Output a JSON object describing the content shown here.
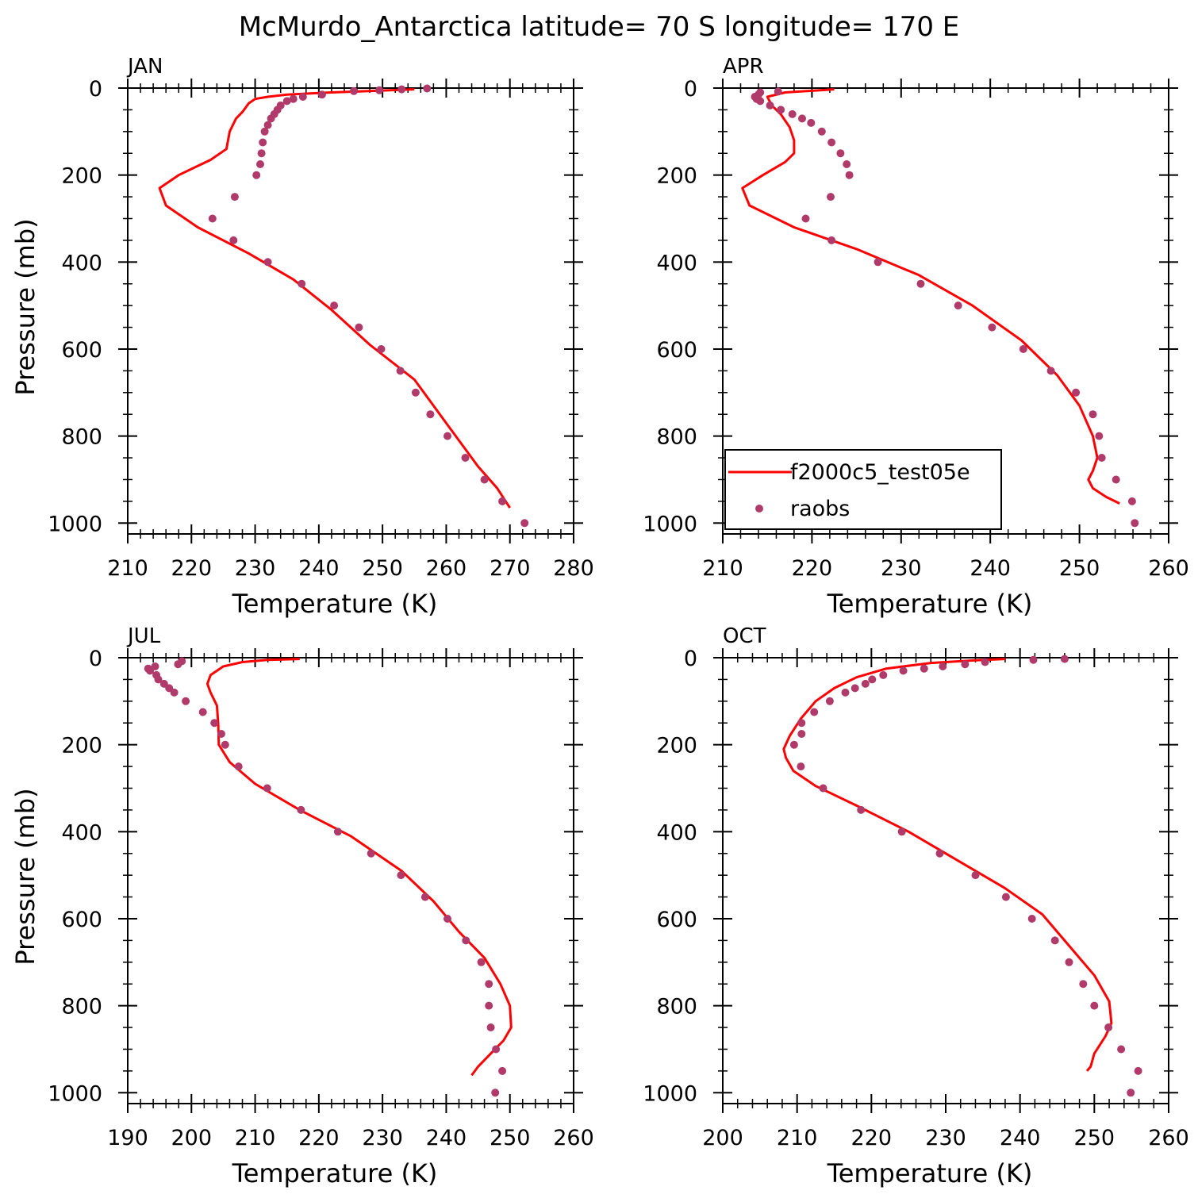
{
  "title": "McMurdo_Antarctica  latitude= 70 S longitude= 170 E",
  "colors": {
    "model_line": "#ff0000",
    "obs_marker": "#b03a6a",
    "axes": "#000000"
  },
  "legend": {
    "items": [
      {
        "label": "f2000c5_test05e",
        "kind": "line"
      },
      {
        "label": "raobs",
        "kind": "marker"
      }
    ]
  },
  "chart_data": [
    {
      "type": "line",
      "panel": "JAN",
      "xlabel": "Temperature (K)",
      "ylabel": "Pressure (mb)",
      "xlim": [
        210,
        280
      ],
      "ylim": [
        0,
        1025
      ],
      "y_inverted": true,
      "xticks": [
        "210",
        "220",
        "230",
        "240",
        "250",
        "260",
        "270",
        "280"
      ],
      "yticks": [
        "0",
        "200",
        "400",
        "600",
        "800",
        "1000"
      ],
      "series": [
        {
          "name": "f2000c5_test05e",
          "kind": "line",
          "points": [
            [
              255,
              3
            ],
            [
              242,
              10
            ],
            [
              235,
              15
            ],
            [
              232,
              20
            ],
            [
              230,
              25
            ],
            [
              229,
              35
            ],
            [
              228,
              55
            ],
            [
              227,
              70
            ],
            [
              226,
              100
            ],
            [
              225.5,
              140
            ],
            [
              223,
              165
            ],
            [
              218,
              200
            ],
            [
              215,
              230
            ],
            [
              216,
              270
            ],
            [
              221,
              320
            ],
            [
              229,
              380
            ],
            [
              236,
              440
            ],
            [
              242,
              510
            ],
            [
              248,
              590
            ],
            [
              255,
              670
            ],
            [
              260,
              770
            ],
            [
              265,
              870
            ],
            [
              268,
              920
            ],
            [
              270,
              965
            ]
          ]
        },
        {
          "name": "raobs",
          "kind": "scatter",
          "points": [
            [
              257,
              1
            ],
            [
              253,
              3
            ],
            [
              249.5,
              5
            ],
            [
              245.5,
              7
            ],
            [
              240.5,
              15
            ],
            [
              237.5,
              20
            ],
            [
              236,
              25
            ],
            [
              235,
              30
            ],
            [
              234,
              40
            ],
            [
              233.5,
              50
            ],
            [
              233,
              60
            ],
            [
              232.5,
              70
            ],
            [
              232,
              85
            ],
            [
              231.5,
              100
            ],
            [
              231.2,
              125
            ],
            [
              231,
              150
            ],
            [
              230.8,
              175
            ],
            [
              230.2,
              200
            ],
            [
              226.8,
              250
            ],
            [
              223.3,
              300
            ],
            [
              226.6,
              350
            ],
            [
              232,
              400
            ],
            [
              237.3,
              450
            ],
            [
              242.4,
              500
            ],
            [
              246.3,
              550
            ],
            [
              249.8,
              600
            ],
            [
              252.8,
              650
            ],
            [
              255.2,
              700
            ],
            [
              257.5,
              750
            ],
            [
              260.2,
              800
            ],
            [
              263,
              850
            ],
            [
              266,
              900
            ],
            [
              268.8,
              950
            ],
            [
              272.3,
              1000
            ]
          ]
        }
      ]
    },
    {
      "type": "line",
      "panel": "APR",
      "xlabel": "Temperature (K)",
      "ylabel": "",
      "xlim": [
        210,
        260
      ],
      "ylim": [
        0,
        1025
      ],
      "y_inverted": true,
      "xticks": [
        "210",
        "220",
        "230",
        "240",
        "250",
        "260"
      ],
      "yticks": [
        "0",
        "200",
        "400",
        "600",
        "800",
        "1000"
      ],
      "series": [
        {
          "name": "f2000c5_test05e",
          "kind": "line",
          "points": [
            [
              222.5,
              3
            ],
            [
              217,
              10
            ],
            [
              215,
              20
            ],
            [
              215.5,
              40
            ],
            [
              216.5,
              60
            ],
            [
              217.5,
              90
            ],
            [
              218,
              120
            ],
            [
              218,
              150
            ],
            [
              217,
              170
            ],
            [
              214.5,
              200
            ],
            [
              212.2,
              230
            ],
            [
              213,
              270
            ],
            [
              218,
              320
            ],
            [
              225,
              370
            ],
            [
              232,
              430
            ],
            [
              238,
              500
            ],
            [
              243.5,
              580
            ],
            [
              247.5,
              660
            ],
            [
              250,
              730
            ],
            [
              251.5,
              800
            ],
            [
              252,
              850
            ],
            [
              251.5,
              880
            ],
            [
              251,
              900
            ],
            [
              251.5,
              920
            ],
            [
              253,
              940
            ],
            [
              254.5,
              955
            ]
          ]
        },
        {
          "name": "raobs",
          "kind": "scatter",
          "points": [
            [
              216.2,
              8
            ],
            [
              214.2,
              10
            ],
            [
              214,
              15
            ],
            [
              213.6,
              20
            ],
            [
              213.8,
              25
            ],
            [
              214.2,
              30
            ],
            [
              215.3,
              40
            ],
            [
              216.5,
              50
            ],
            [
              217.8,
              60
            ],
            [
              218.9,
              70
            ],
            [
              219.9,
              80
            ],
            [
              221.1,
              100
            ],
            [
              222.2,
              125
            ],
            [
              223.2,
              150
            ],
            [
              223.9,
              175
            ],
            [
              224.2,
              200
            ],
            [
              222.1,
              250
            ],
            [
              219.3,
              300
            ],
            [
              222.2,
              350
            ],
            [
              227.4,
              400
            ],
            [
              232.2,
              450
            ],
            [
              236.4,
              500
            ],
            [
              240.2,
              550
            ],
            [
              243.7,
              600
            ],
            [
              246.8,
              650
            ],
            [
              249.6,
              700
            ],
            [
              251.5,
              750
            ],
            [
              252.2,
              800
            ],
            [
              252.5,
              850
            ],
            [
              254.1,
              900
            ],
            [
              255.9,
              950
            ],
            [
              256.2,
              1000
            ]
          ]
        }
      ]
    },
    {
      "type": "line",
      "panel": "JUL",
      "xlabel": "Temperature (K)",
      "ylabel": "Pressure (mb)",
      "xlim": [
        190,
        260
      ],
      "ylim": [
        0,
        1025
      ],
      "y_inverted": true,
      "xticks": [
        "190",
        "200",
        "210",
        "220",
        "230",
        "240",
        "250",
        "260"
      ],
      "yticks": [
        "0",
        "200",
        "400",
        "600",
        "800",
        "1000"
      ],
      "series": [
        {
          "name": "f2000c5_test05e",
          "kind": "line",
          "points": [
            [
              217,
              3
            ],
            [
              212,
              5
            ],
            [
              208,
              10
            ],
            [
              205,
              20
            ],
            [
              203,
              40
            ],
            [
              202.5,
              60
            ],
            [
              203,
              80
            ],
            [
              204,
              110
            ],
            [
              204.2,
              150
            ],
            [
              204.3,
              200
            ],
            [
              206,
              240
            ],
            [
              210,
              290
            ],
            [
              217,
              350
            ],
            [
              225,
              410
            ],
            [
              233,
              490
            ],
            [
              238,
              560
            ],
            [
              242,
              630
            ],
            [
              246,
              690
            ],
            [
              248.5,
              750
            ],
            [
              250,
              800
            ],
            [
              250.2,
              850
            ],
            [
              249,
              880
            ],
            [
              247,
              910
            ],
            [
              245,
              940
            ],
            [
              244,
              960
            ]
          ]
        },
        {
          "name": "raobs",
          "kind": "scatter",
          "points": [
            [
              198.5,
              8
            ],
            [
              197.9,
              15
            ],
            [
              194.3,
              20
            ],
            [
              193.2,
              25
            ],
            [
              193.5,
              30
            ],
            [
              194.5,
              40
            ],
            [
              194.8,
              50
            ],
            [
              195.7,
              60
            ],
            [
              196.5,
              70
            ],
            [
              197.3,
              80
            ],
            [
              199.1,
              100
            ],
            [
              201.8,
              125
            ],
            [
              203.6,
              150
            ],
            [
              204.7,
              175
            ],
            [
              205.3,
              200
            ],
            [
              207.4,
              250
            ],
            [
              211.9,
              300
            ],
            [
              217.2,
              350
            ],
            [
              223,
              400
            ],
            [
              228.2,
              450
            ],
            [
              232.9,
              500
            ],
            [
              236.7,
              550
            ],
            [
              240.2,
              600
            ],
            [
              243.1,
              650
            ],
            [
              245.5,
              700
            ],
            [
              246.7,
              750
            ],
            [
              246.7,
              800
            ],
            [
              247,
              850
            ],
            [
              247.8,
              900
            ],
            [
              248.8,
              950
            ],
            [
              247.7,
              1000
            ]
          ]
        }
      ]
    },
    {
      "type": "line",
      "panel": "OCT",
      "xlabel": "Temperature (K)",
      "ylabel": "",
      "xlim": [
        200,
        260
      ],
      "ylim": [
        0,
        1025
      ],
      "y_inverted": true,
      "xticks": [
        "200",
        "210",
        "220",
        "230",
        "240",
        "250",
        "260"
      ],
      "yticks": [
        "0",
        "200",
        "400",
        "600",
        "800",
        "1000"
      ],
      "series": [
        {
          "name": "f2000c5_test05e",
          "kind": "line",
          "points": [
            [
              238,
              3
            ],
            [
              234,
              6
            ],
            [
              228,
              12
            ],
            [
              222,
              25
            ],
            [
              218,
              45
            ],
            [
              215,
              70
            ],
            [
              212.5,
              100
            ],
            [
              210.5,
              140
            ],
            [
              209,
              180
            ],
            [
              208.2,
              210
            ],
            [
              208.5,
              230
            ],
            [
              209.5,
              260
            ],
            [
              212.5,
              295
            ],
            [
              218,
              340
            ],
            [
              225,
              400
            ],
            [
              232,
              470
            ],
            [
              238,
              530
            ],
            [
              243,
              590
            ],
            [
              247,
              670
            ],
            [
              250,
              730
            ],
            [
              252,
              790
            ],
            [
              252.3,
              840
            ],
            [
              251.5,
              870
            ],
            [
              250,
              910
            ],
            [
              249.5,
              940
            ],
            [
              249,
              950
            ]
          ]
        },
        {
          "name": "raobs",
          "kind": "scatter",
          "points": [
            [
              246,
              3
            ],
            [
              241.8,
              5
            ],
            [
              235.3,
              10
            ],
            [
              232.6,
              15
            ],
            [
              229.6,
              20
            ],
            [
              227.1,
              25
            ],
            [
              224.3,
              30
            ],
            [
              221.6,
              40
            ],
            [
              220.1,
              50
            ],
            [
              219.2,
              60
            ],
            [
              217.8,
              70
            ],
            [
              216.5,
              80
            ],
            [
              214.4,
              100
            ],
            [
              212.3,
              125
            ],
            [
              210.6,
              150
            ],
            [
              210.6,
              175
            ],
            [
              209.6,
              200
            ],
            [
              210.5,
              250
            ],
            [
              213.5,
              300
            ],
            [
              218.6,
              350
            ],
            [
              224.1,
              400
            ],
            [
              229.2,
              450
            ],
            [
              234,
              500
            ],
            [
              238.1,
              550
            ],
            [
              241.6,
              600
            ],
            [
              244.7,
              650
            ],
            [
              246.6,
              700
            ],
            [
              248.5,
              750
            ],
            [
              250,
              800
            ],
            [
              251.9,
              850
            ],
            [
              253.6,
              900
            ],
            [
              255.9,
              950
            ],
            [
              254.9,
              1000
            ]
          ]
        }
      ]
    }
  ]
}
